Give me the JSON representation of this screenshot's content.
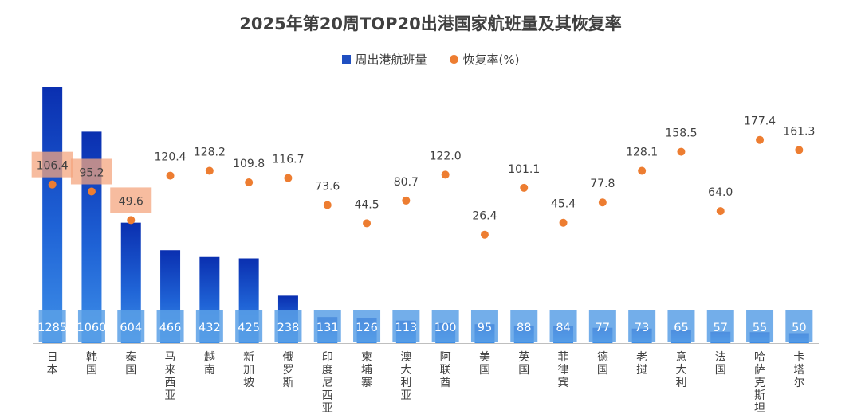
{
  "chart_data": {
    "type": "bar",
    "title": "2025年第20周TOP20出港国家航班量及其恢复率",
    "categories": [
      "日本",
      "韩国",
      "泰国",
      "马来西亚",
      "越南",
      "新加坡",
      "俄罗斯",
      "印度尼西亚",
      "柬埔寨",
      "澳大利亚",
      "阿联酋",
      "美国",
      "英国",
      "菲律宾",
      "德国",
      "老挝",
      "意大利",
      "法国",
      "哈萨克斯坦",
      "卡塔尔"
    ],
    "series": [
      {
        "name": "周出港航班量",
        "kind": "bar",
        "color": "#1f4fc1",
        "values": [
          1285,
          1060,
          604,
          466,
          432,
          425,
          238,
          131,
          126,
          113,
          100,
          95,
          88,
          84,
          77,
          73,
          65,
          57,
          55,
          50
        ]
      },
      {
        "name": "恢复率(%)",
        "kind": "scatter",
        "color": "#ed7d31",
        "values": [
          106.4,
          95.2,
          49.6,
          120.4,
          128.2,
          109.8,
          116.7,
          73.6,
          44.5,
          80.7,
          122.0,
          26.4,
          101.1,
          45.4,
          77.8,
          128.1,
          158.5,
          64.0,
          177.4,
          161.3
        ]
      }
    ],
    "bar_labels": [
      "1285",
      "1060",
      "604",
      "466",
      "432",
      "425",
      "238",
      "131",
      "126",
      "113",
      "100",
      "95",
      "88",
      "84",
      "77",
      "73",
      "65",
      "57",
      "55",
      "50"
    ],
    "point_labels": [
      "106.4",
      "95.2",
      "49.6",
      "120.4",
      "128.2",
      "109.8",
      "116.7",
      "73.6",
      "44.5",
      "80.7",
      "122.0",
      "26.4",
      "101.1",
      "45.4",
      "77.8",
      "128.1",
      "158.5",
      "64.0",
      "177.4",
      "161.3"
    ],
    "highlighted_point_labels": [
      0,
      1,
      2
    ],
    "legend_position": "top",
    "grid": false
  }
}
